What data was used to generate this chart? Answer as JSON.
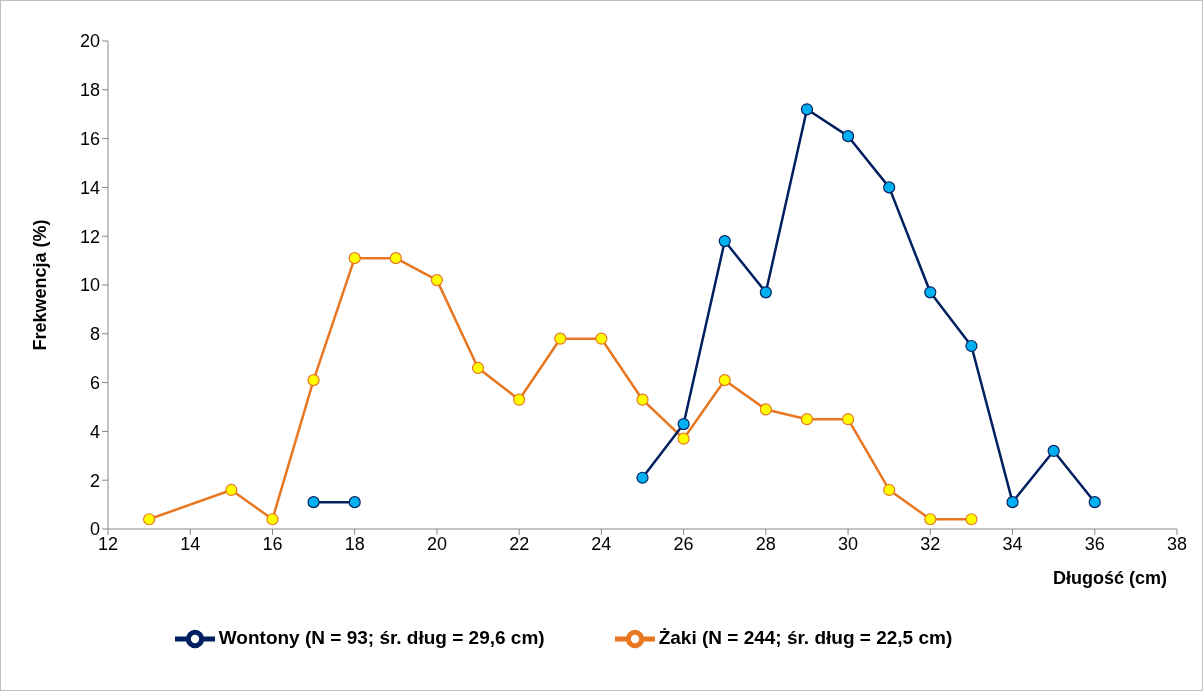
{
  "chart_data": {
    "type": "line",
    "xlabel": "Długość (cm)",
    "ylabel": "Frekwencja (%)",
    "xlim": [
      12,
      38
    ],
    "xticks": [
      12,
      14,
      16,
      18,
      20,
      22,
      24,
      26,
      28,
      30,
      32,
      34,
      36,
      38
    ],
    "ylim": [
      0,
      20
    ],
    "yticks": [
      0,
      2,
      4,
      6,
      8,
      10,
      12,
      14,
      16,
      18,
      20
    ],
    "grid": false,
    "legend": "bottom",
    "marker": "circle",
    "line_style": "solid",
    "series": [
      {
        "name": "Żaki (N = 244; śr. dług = 22,5 cm)",
        "color": "#e87722",
        "x": [
          13,
          15,
          16,
          17,
          18,
          19,
          20,
          21,
          22,
          23,
          24,
          25,
          26,
          27,
          28,
          29,
          30,
          31,
          32,
          33
        ],
        "values": [
          0.4,
          1.6,
          0.4,
          6.1,
          11.1,
          11.1,
          10.2,
          6.6,
          5.3,
          7.8,
          7.8,
          5.3,
          3.7,
          6.1,
          4.9,
          4.5,
          4.5,
          1.6,
          0.4,
          0.4
        ]
      },
      {
        "name": "Wontony (N = 93; śr. dług = 29,6 cm)",
        "color": "#002060",
        "x": [
          17,
          18,
          19,
          25,
          26,
          27,
          28,
          29,
          30,
          31,
          32,
          33,
          34,
          35,
          36
        ],
        "values": [
          1.1,
          1.1,
          null,
          2.1,
          4.3,
          11.8,
          9.7,
          17.2,
          16.1,
          14.0,
          9.7,
          7.5,
          1.1,
          3.2,
          1.1
        ]
      }
    ]
  }
}
